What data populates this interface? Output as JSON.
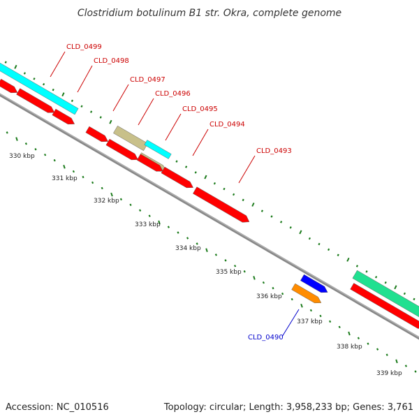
{
  "title": "Clostridium botulinum B1 str. Okra, complete genome",
  "footer": {
    "accession": "Accession: NC_010516",
    "summary": "Topology: circular; Length: 3,958,233 bp; Genes: 3,761"
  },
  "colors": {
    "cds": "#ff0000",
    "cds_reverse_small": "#ff0000",
    "rrna": "#00ffff",
    "trna": "#c8c08a",
    "other_feature": "#0000ff",
    "other_feature_2": "#ff8c00",
    "misc_feature": "#20e090",
    "backbone": "#888888",
    "ticks": "#1a7a1a",
    "label_red": "#cc0000",
    "label_blue": "#0000cc"
  },
  "ticks": [
    {
      "label": "330 kbp"
    },
    {
      "label": "331 kbp"
    },
    {
      "label": "332 kbp"
    },
    {
      "label": "333 kbp"
    },
    {
      "label": "334 kbp"
    },
    {
      "label": "335 kbp"
    },
    {
      "label": "336 kbp"
    },
    {
      "label": "337 kbp"
    },
    {
      "label": "338 kbp"
    },
    {
      "label": "339 kbp"
    }
  ],
  "gene_labels": [
    {
      "text": "CLD_0499",
      "color": "red"
    },
    {
      "text": "CLD_0498",
      "color": "red"
    },
    {
      "text": "CLD_0497",
      "color": "red"
    },
    {
      "text": "CLD_0496",
      "color": "red"
    },
    {
      "text": "CLD_0495",
      "color": "red"
    },
    {
      "text": "CLD_0494",
      "color": "red"
    },
    {
      "text": "CLD_0493",
      "color": "red"
    },
    {
      "text": "CLD_0490",
      "color": "blue"
    }
  ]
}
